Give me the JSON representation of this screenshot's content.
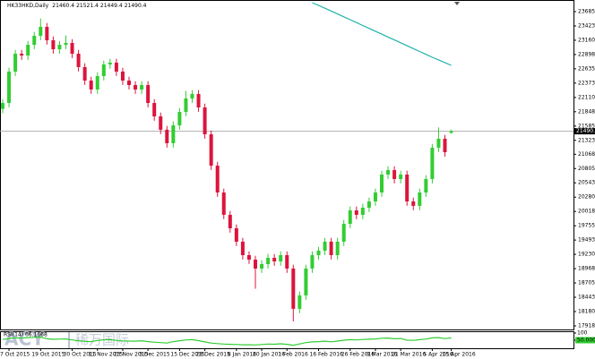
{
  "chart_data": {
    "type": "candlestick",
    "symbol": "HK33HKD,Daily",
    "watermark": [
      "ACY",
      "稀万国际"
    ],
    "bull_color": "#32cd32",
    "bear_color": "#dc143c",
    "ma_color": "#20b2aa",
    "categories": [
      null,
      "7 Oct 2015",
      null,
      null,
      null,
      null,
      "19 Oct 2015",
      null,
      null,
      null,
      null,
      "30 Oct 2015",
      null,
      null,
      null,
      "11 Nov 2015",
      null,
      null,
      null,
      "23 Nov 2015",
      null,
      null,
      null,
      "3 Dec 2015",
      null,
      null,
      null,
      null,
      "15 Dec 2015",
      null,
      null,
      null,
      "28 Dec 2015",
      null,
      null,
      null,
      null,
      "8 Jan 2016",
      null,
      null,
      null,
      "20 Jan 2016",
      null,
      null,
      null,
      "1 Feb 2016",
      null,
      null,
      null,
      null,
      "16 Feb 2016",
      null,
      null,
      null,
      null,
      "26 Feb 2016",
      null,
      null,
      null,
      "9 Mar 2016",
      null,
      null,
      null,
      "21 Mar 2016",
      null,
      null,
      null,
      null,
      "5 Apr 2016",
      null,
      null,
      "15 Apr 2016"
    ],
    "open": [
      21900,
      22009,
      22585,
      22913,
      22880,
      23077,
      23242,
      23406,
      23160,
      22995,
      23077,
      23110,
      22913,
      22667,
      22420,
      22256,
      22502,
      22716,
      22749,
      22585,
      22420,
      22338,
      22256,
      22338,
      22009,
      21763,
      21517,
      21270,
      21599,
      21845,
      22092,
      22174,
      21927,
      21434,
      20859,
      20366,
      19956,
      19709,
      19463,
      19216,
      19134,
      18970,
      19052,
      19167,
      19101,
      19216,
      18970,
      18231,
      18477,
      18970,
      19216,
      19298,
      19463,
      19216,
      19463,
      19791,
      20038,
      19956,
      20087,
      20202,
      20366,
      20695,
      20777,
      20613,
      20695,
      20202,
      20120,
      20366,
      20613,
      21188,
      21352,
      21460.4
    ],
    "high": [
      22079,
      22655,
      22983,
      22983,
      23147,
      23312,
      23560,
      23476,
      23230,
      23147,
      23250,
      23180,
      22983,
      22737,
      22490,
      22572,
      22786,
      22819,
      22819,
      22655,
      22490,
      22408,
      22408,
      22408,
      22079,
      21833,
      21587,
      21669,
      21915,
      22230,
      22244,
      22244,
      21997,
      21504,
      20929,
      20436,
      20026,
      19779,
      19533,
      19286,
      19204,
      19122,
      19237,
      19237,
      19286,
      19286,
      19040,
      18547,
      19040,
      19286,
      19368,
      19533,
      19533,
      19533,
      19861,
      20108,
      20108,
      20157,
      20272,
      20436,
      20765,
      20847,
      20847,
      20765,
      20765,
      20272,
      20436,
      20683,
      21258,
      21560,
      21422,
      21521.4
    ],
    "low": [
      21820,
      21929,
      22505,
      22800,
      22800,
      22997,
      23162,
      23080,
      22915,
      22915,
      22997,
      22833,
      22587,
      22340,
      22176,
      22176,
      22422,
      22636,
      22505,
      22340,
      22258,
      22176,
      22176,
      21929,
      21683,
      21437,
      21190,
      21190,
      21519,
      21765,
      22012,
      21847,
      21354,
      20779,
      20286,
      19876,
      19629,
      19383,
      19136,
      19054,
      18600,
      18890,
      18972,
      19021,
      19021,
      18890,
      18000,
      18151,
      18397,
      18890,
      19136,
      19218,
      19136,
      19136,
      19383,
      19711,
      19876,
      19876,
      20007,
      20122,
      20286,
      20615,
      20533,
      20533,
      20122,
      20040,
      20040,
      20286,
      20533,
      21108,
      21026,
      21449.4
    ],
    "close": [
      22009,
      22585,
      22913,
      22880,
      23077,
      23242,
      23406,
      23160,
      22995,
      23077,
      23110,
      22913,
      22667,
      22420,
      22256,
      22502,
      22716,
      22749,
      22585,
      22420,
      22338,
      22256,
      22338,
      22009,
      21763,
      21517,
      21270,
      21599,
      21845,
      22092,
      22174,
      21927,
      21434,
      20859,
      20366,
      19956,
      19709,
      19463,
      19216,
      19134,
      18970,
      19052,
      19167,
      19101,
      19216,
      18970,
      18231,
      18477,
      18970,
      19216,
      19298,
      19463,
      19216,
      19463,
      19791,
      20038,
      19956,
      20087,
      20202,
      20366,
      20695,
      20777,
      20613,
      20695,
      20202,
      20120,
      20366,
      20613,
      21188,
      21352,
      21106,
      21490.4
    ],
    "ma": [
      null,
      null,
      null,
      null,
      null,
      null,
      null,
      null,
      null,
      null,
      null,
      null,
      null,
      null,
      null,
      null,
      null,
      null,
      null,
      null,
      null,
      null,
      null,
      null,
      null,
      null,
      null,
      null,
      null,
      null,
      null,
      null,
      null,
      null,
      null,
      null,
      null,
      null,
      null,
      null,
      null,
      null,
      null,
      null,
      null,
      null,
      null,
      null,
      null,
      23850,
      23800,
      23748,
      23696,
      23643,
      23590,
      23537,
      23484,
      23431,
      23378,
      23325,
      23272,
      23219,
      23166,
      23113,
      23060,
      23007,
      22954,
      22901,
      22848,
      22800,
      22750,
      22700
    ],
    "ylim": [
      17852,
      23866
    ],
    "yticks": [
      23685.5,
      {
        "value": 23423,
        "label": "23423.0"
      },
      23160.5,
      {
        "value": 22898,
        "label": "22898.0"
      },
      22635.5,
      {
        "value": 22373,
        "label": "22373.0"
      },
      22110.5,
      {
        "value": 21848,
        "label": "21848.0"
      },
      21585.5,
      {
        "value": 21323,
        "label": "21323.0"
      },
      {
        "value": 21068,
        "label": "21068.0"
      },
      20805.5,
      {
        "value": 20543,
        "label": "20543.0"
      },
      20280.5,
      {
        "value": 20018,
        "label": "20018.0"
      },
      19755.5,
      {
        "value": 19493,
        "label": "19493.0"
      },
      19230.5,
      {
        "value": 18968,
        "label": "18968.0"
      },
      18705.5,
      {
        "value": 18443,
        "label": "18443.0"
      },
      18180.5,
      {
        "value": 17918,
        "label": "17918.0"
      }
    ],
    "rsi_label": "RSI(14) 66.1668",
    "rsi_color": "#32cd32",
    "rsi": [
      55,
      62,
      66,
      65,
      68,
      70,
      72,
      60,
      56,
      58,
      59,
      52,
      46,
      42,
      40,
      48,
      53,
      54,
      49,
      45,
      44,
      43,
      46,
      40,
      36,
      33,
      30,
      40,
      46,
      52,
      54,
      47,
      38,
      30,
      26,
      23,
      21,
      20,
      18,
      18,
      17,
      20,
      23,
      22,
      25,
      21,
      15,
      24,
      33,
      38,
      40,
      43,
      39,
      44,
      50,
      54,
      52,
      55,
      57,
      59,
      64,
      65,
      60,
      62,
      50,
      49,
      54,
      58,
      66,
      68,
      61,
      66.1668
    ],
    "rsi_ylim": [
      0,
      100
    ],
    "rsi_yticks": [
      100,
      {
        "value": 50,
        "label": "50.0000"
      }
    ]
  }
}
